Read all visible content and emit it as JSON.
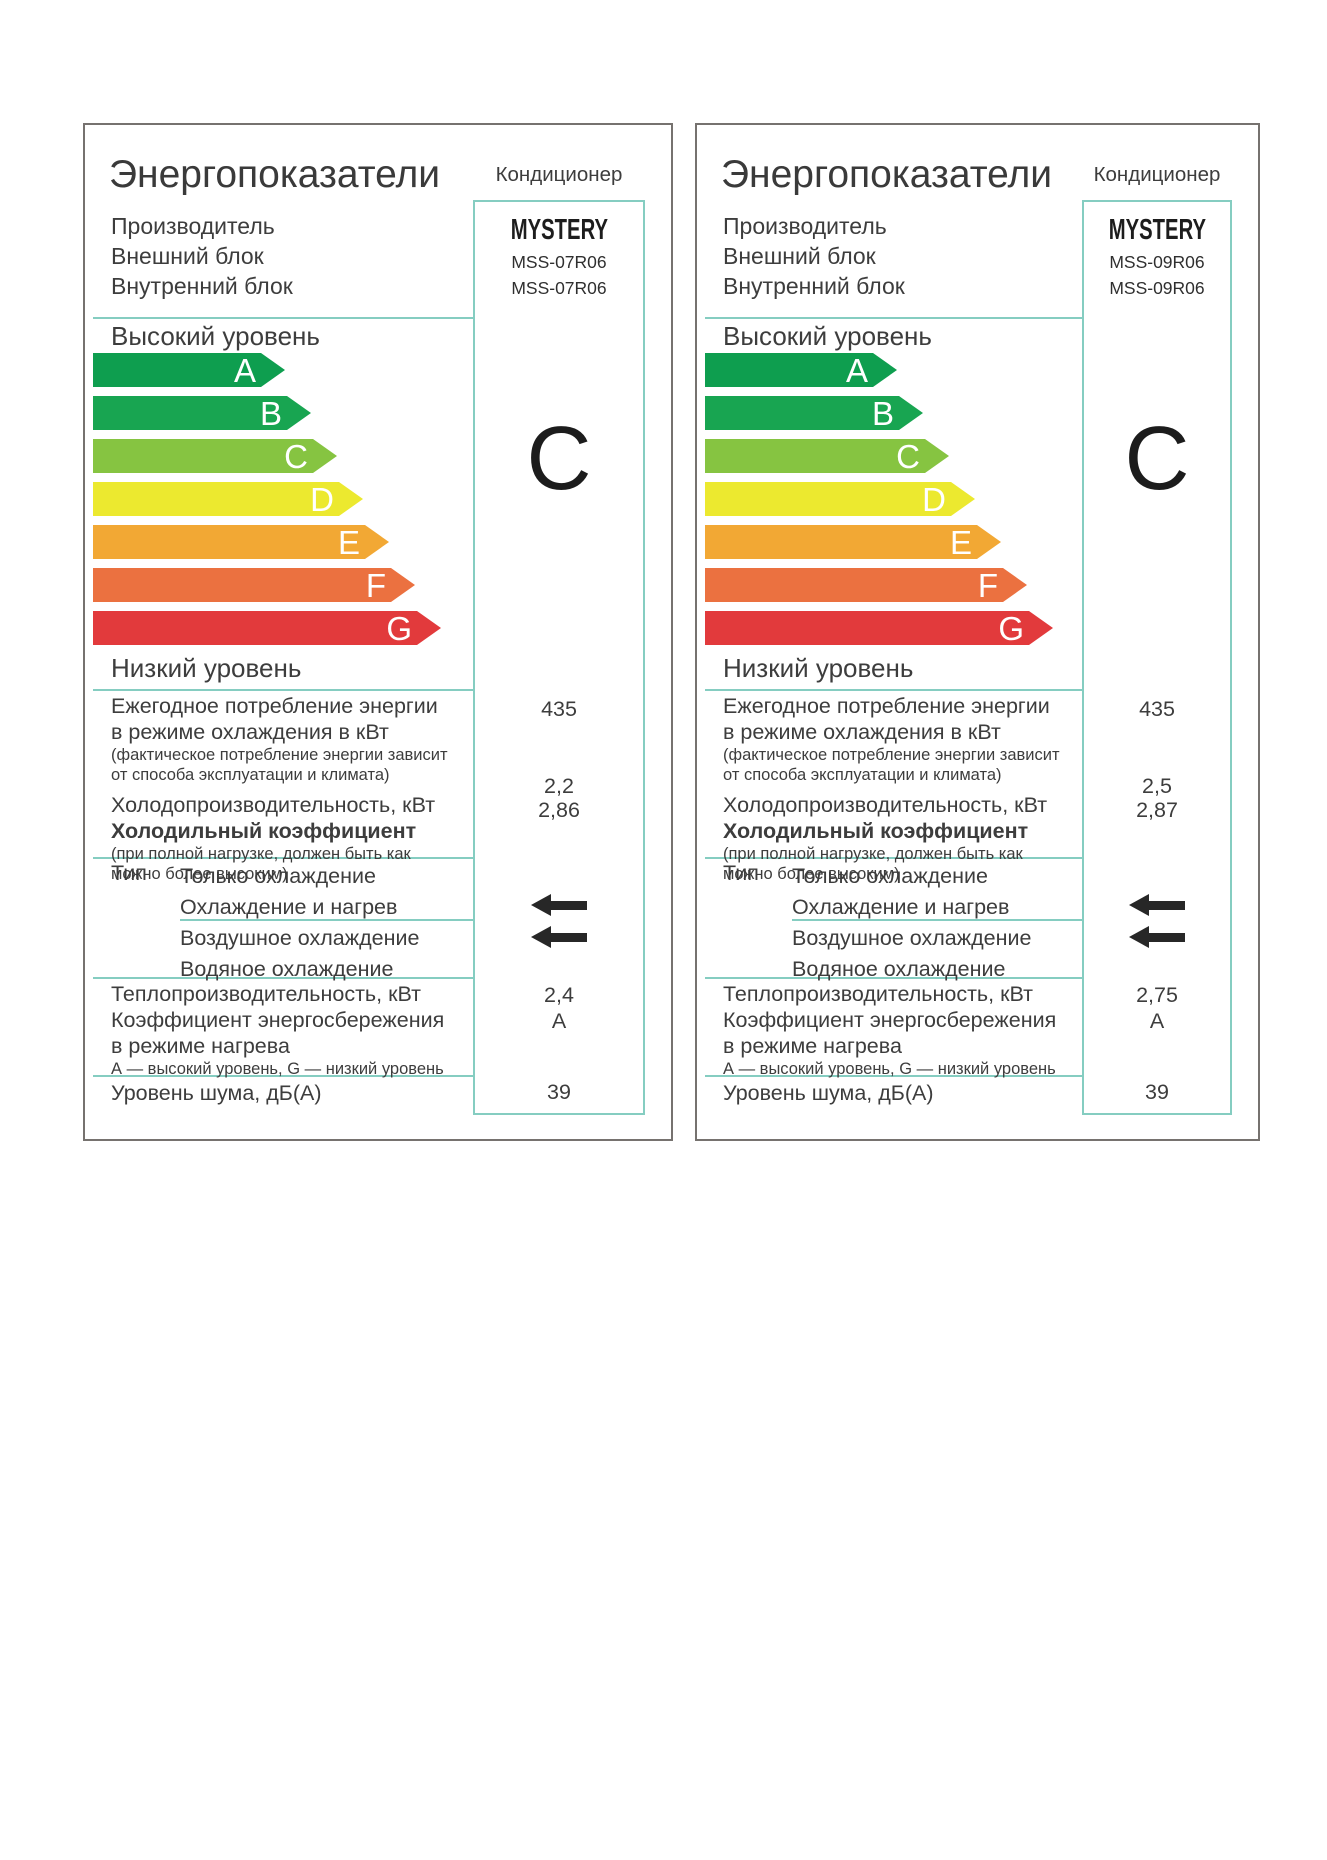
{
  "page": {
    "background": "#ffffff",
    "border_color": "#76726f",
    "grid_line_color": "#85cdc1"
  },
  "shared": {
    "title": "Энергопоказатели",
    "product_type": "Кондиционер",
    "brand": "MYSTERY",
    "manufacturer_label": "Производитель",
    "outdoor_unit_label": "Внешний блок",
    "indoor_unit_label": "Внутренний блок",
    "high_level_label": "Высокий уровень",
    "low_level_label": "Низкий уровень",
    "classes": [
      {
        "letter": "A",
        "color": "#0e9e4f"
      },
      {
        "letter": "B",
        "color": "#18a551"
      },
      {
        "letter": "C",
        "color": "#86c441"
      },
      {
        "letter": "D",
        "color": "#ece92f"
      },
      {
        "letter": "E",
        "color": "#f2a834"
      },
      {
        "letter": "F",
        "color": "#eb7140"
      },
      {
        "letter": "G",
        "color": "#e23a3c"
      }
    ],
    "rows": {
      "annual_label_1": "Ежегодное потребление энергии",
      "annual_label_2": "в режиме охлаждения в кВт",
      "annual_note_1": "(фактическое потребление энергии зависит",
      "annual_note_2": "от способа эксплуатации и климата)",
      "cooling_capacity_label": "Холодопроизводительность, кВт",
      "eer_label": "Холодильный коэффициент",
      "eer_note_1": "(при полной нагрузке, должен быть как",
      "eer_note_2": "можно более высоким)",
      "type_label": "Тип",
      "type_option_1": "Только охлаждение",
      "type_option_2": "Охлаждение и нагрев",
      "type_option_3": "Воздушное охлаждение",
      "type_option_4": "Водяное охлаждение",
      "type_marker_icon": "left-arrow-icon",
      "heating_capacity_label": "Теплопроизводительность, кВт",
      "heating_eff_label_1": "Коэффициент энергосбережения",
      "heating_eff_label_2": "в режиме нагрева",
      "heating_eff_note": "А — высокий уровень, G — низкий уровень",
      "noise_label": "Уровень шума, дБ(А)"
    }
  },
  "labels": [
    {
      "outdoor_model": "MSS-07R06",
      "indoor_model": "MSS-07R06",
      "energy_class": "C",
      "annual_consumption": "435",
      "cooling_capacity": "2,2",
      "eer": "2,86",
      "heating_capacity": "2,4",
      "heating_class": "A",
      "noise": "39"
    },
    {
      "outdoor_model": "MSS-09R06",
      "indoor_model": "MSS-09R06",
      "energy_class": "C",
      "annual_consumption": "435",
      "cooling_capacity": "2,5",
      "eer": "2,87",
      "heating_capacity": "2,75",
      "heating_class": "A",
      "noise": "39"
    }
  ]
}
